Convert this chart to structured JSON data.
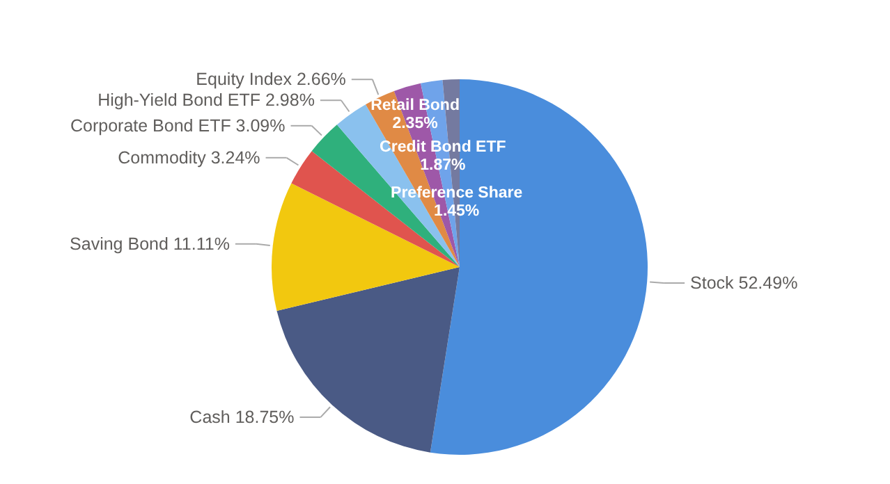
{
  "chart_data": {
    "type": "pie",
    "categories": [
      "Stock",
      "Cash",
      "Saving Bond",
      "Commodity",
      "Corporate Bond ETF",
      "High-Yield Bond ETF",
      "Equity Index",
      "Retail Bond",
      "Credit Bond ETF",
      "Preference Share"
    ],
    "values": [
      52.49,
      18.75,
      11.11,
      3.24,
      3.09,
      2.98,
      2.66,
      2.35,
      1.87,
      1.45
    ],
    "value_labels": [
      "52.49%",
      "18.75%",
      "11.11%",
      "3.24%",
      "3.09%",
      "2.98%",
      "2.66%",
      "2.35%",
      "1.87%",
      "1.45%"
    ],
    "colors": [
      "#4a8ddc",
      "#4a5a85",
      "#f2c80f",
      "#e0544e",
      "#2fb07c",
      "#8ac1ee",
      "#e08a45",
      "#9e58a8",
      "#6fa3ea",
      "#747aa0"
    ]
  }
}
